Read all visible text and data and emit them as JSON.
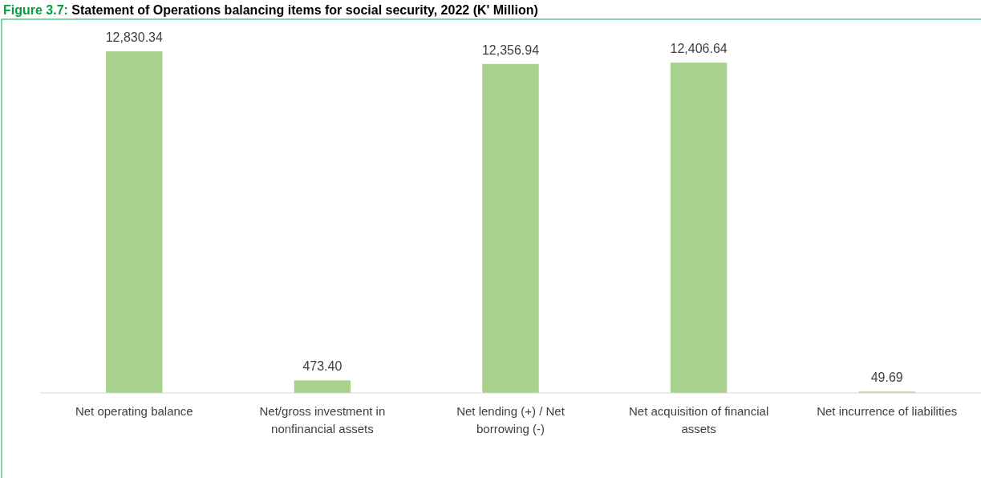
{
  "chart_data": {
    "type": "bar",
    "title": "Figure 3.7: Statement of Operations balancing items for social security, 2022 (K' Million)",
    "categories": [
      "Net operating balance",
      "Net/gross investment in nonfinancial assets",
      "Net lending (+) / Net borrowing (-)",
      "Net acquisition of financial assets",
      "Net incurrence of liabilities"
    ],
    "values": [
      12830.34,
      473.4,
      12356.94,
      12406.64,
      49.69
    ],
    "value_labels": [
      "12,830.34",
      "473.40",
      "12,356.94",
      "12,406.64",
      "49.69"
    ],
    "color": "#a9d18e"
  }
}
